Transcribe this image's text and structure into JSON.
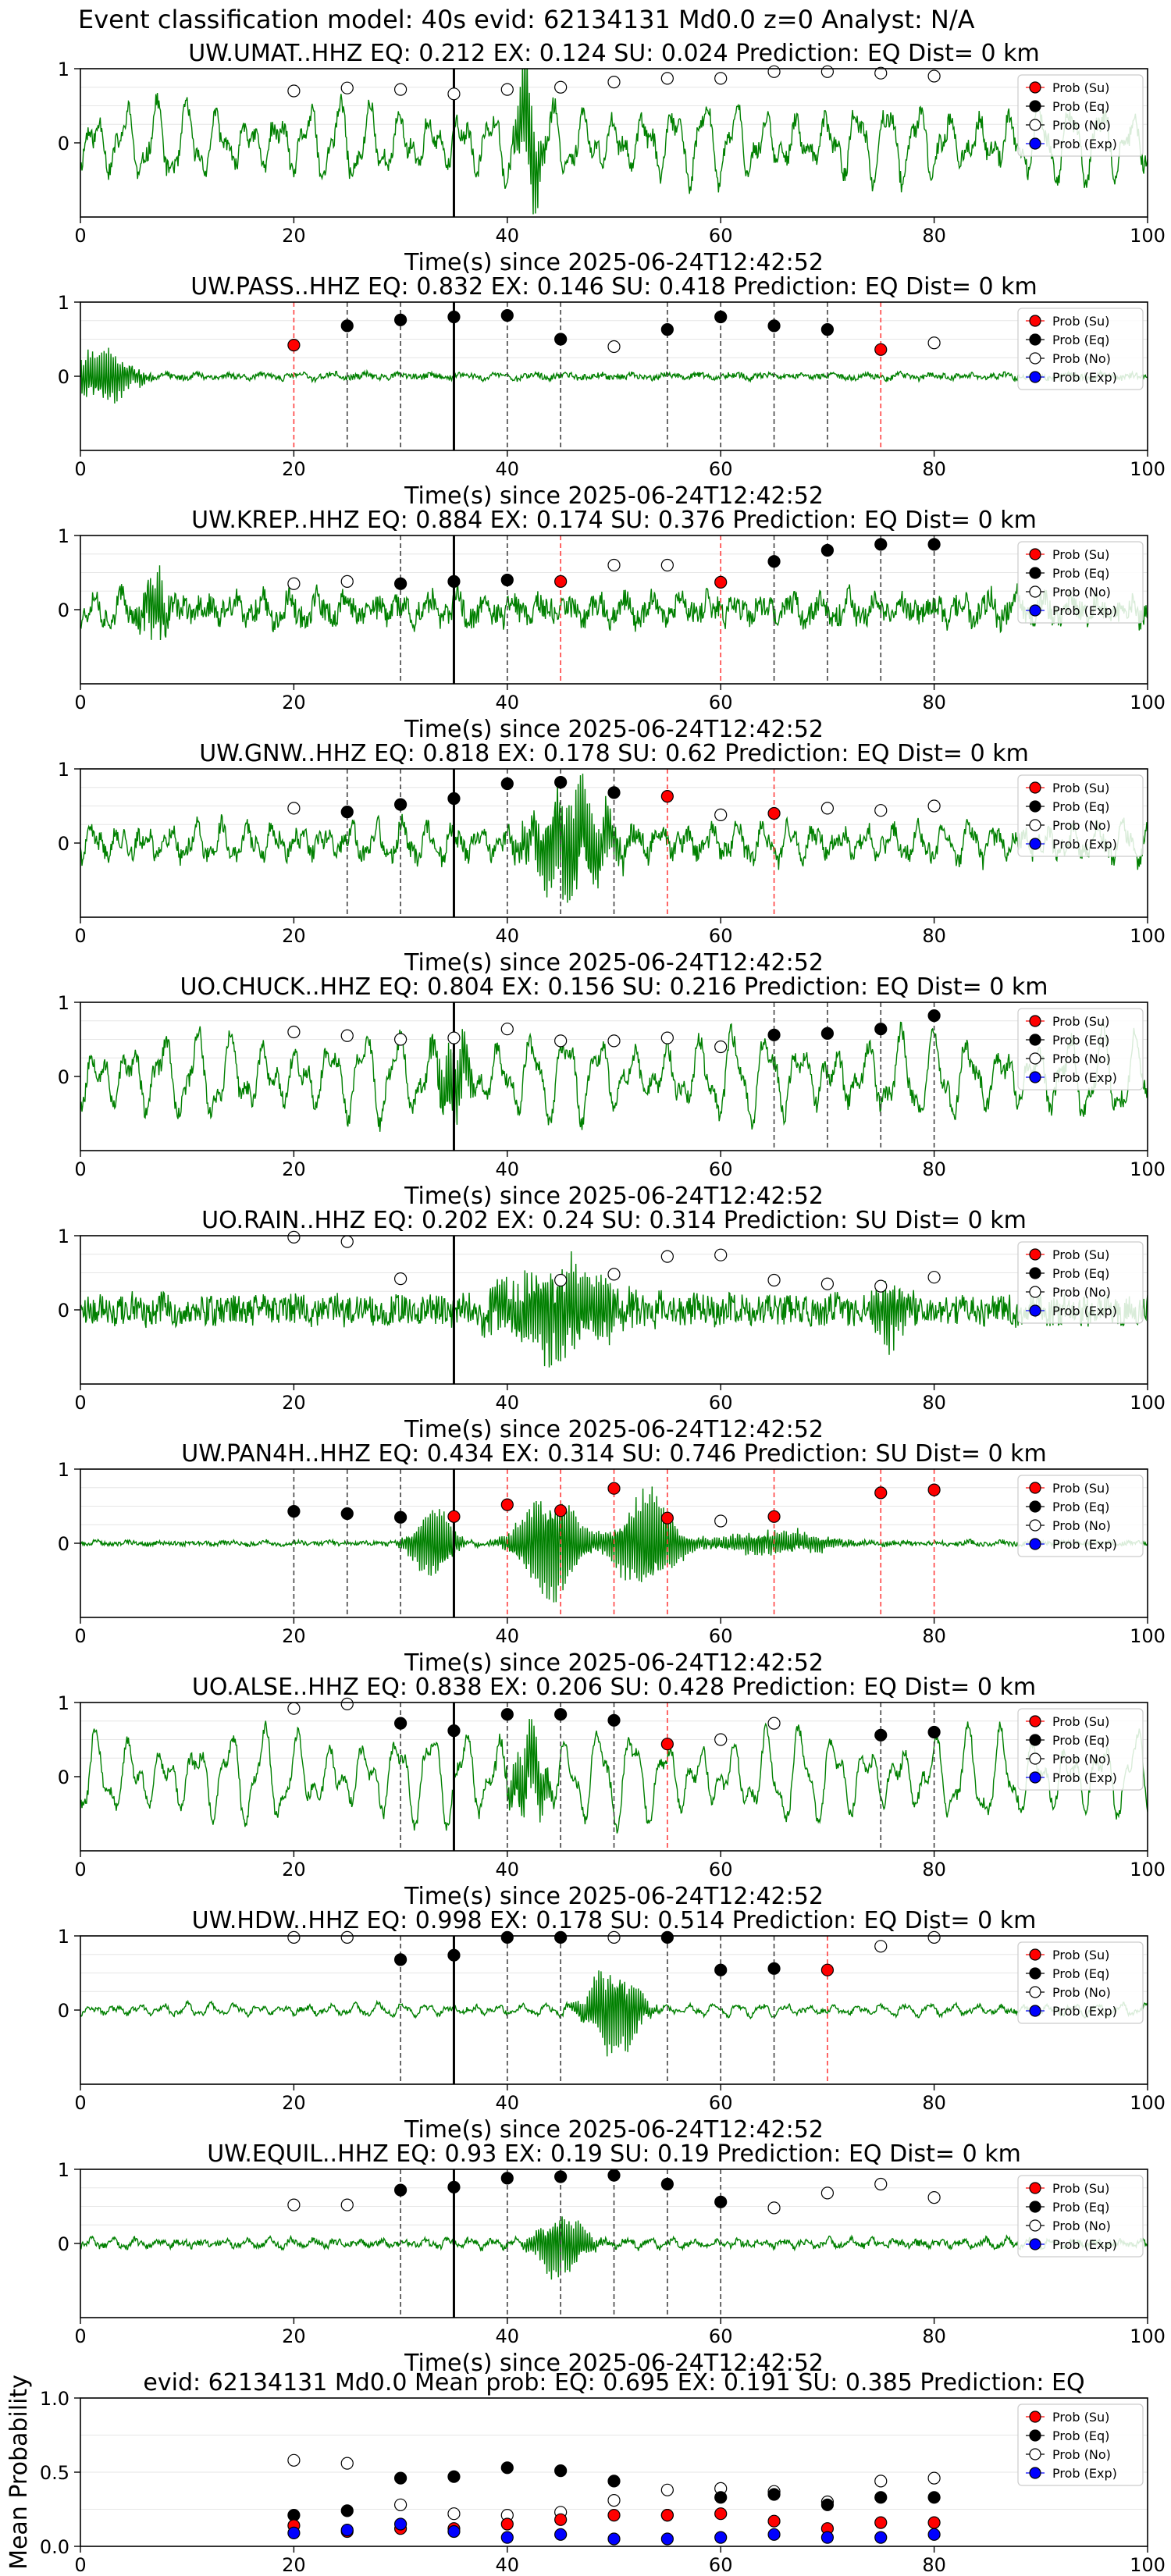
{
  "figure": {
    "suptitle": "Event classification model: 40s evid: 62134131 Md0.0 z=0 Analyst: N/A",
    "legend_labels": [
      "Prob (Su)",
      "Prob (Eq)",
      "Prob (No)",
      "Prob (Exp)"
    ],
    "colors": {
      "su": "#ff0000",
      "eq": "#000000",
      "no": "#ffffff",
      "exp": "#0000ff",
      "trace": "#008000"
    }
  },
  "chart_data": [
    {
      "type": "line",
      "title": "UW.UMAT..HHZ   EQ: 0.212  EX: 0.124  SU: 0.024   Prediction: EQ    Dist= 0 km",
      "xlabel": "Time(s) since 2025-06-24T12:42:52",
      "xlim": [
        0,
        100
      ],
      "ylim": [
        -1,
        1
      ],
      "xticks": [
        "0",
        "20",
        "40",
        "60",
        "80",
        "100"
      ],
      "yticks": [
        "0",
        "1"
      ],
      "seed": 11,
      "amp": 0.45,
      "noise": 0.12,
      "freq": 1.1,
      "bursts": [
        [
          42,
          0.9,
          1.2
        ]
      ],
      "pick_line": 35,
      "markers": [
        [
          20,
          0.7,
          "no"
        ],
        [
          25,
          0.74,
          "no"
        ],
        [
          30,
          0.72,
          "no"
        ],
        [
          35,
          0.66,
          "no"
        ],
        [
          40,
          0.72,
          "no"
        ],
        [
          45,
          0.75,
          "no"
        ],
        [
          50,
          0.82,
          "no"
        ],
        [
          55,
          0.87,
          "no"
        ],
        [
          60,
          0.87,
          "no"
        ],
        [
          65,
          0.96,
          "no"
        ],
        [
          70,
          0.96,
          "no"
        ],
        [
          75,
          0.94,
          "no"
        ],
        [
          80,
          0.9,
          "no"
        ]
      ]
    },
    {
      "type": "line",
      "title": "UW.PASS..HHZ   EQ: 0.832  EX: 0.146  SU: 0.418   Prediction: EQ    Dist= 0 km",
      "xlabel": "Time(s) since 2025-06-24T12:42:52",
      "xlim": [
        0,
        100
      ],
      "ylim": [
        -1,
        1
      ],
      "xticks": [
        "0",
        "20",
        "40",
        "60",
        "80",
        "100"
      ],
      "yticks": [
        "0",
        "1"
      ],
      "seed": 23,
      "amp": 0.03,
      "noise": 0.04,
      "freq": 1.0,
      "bursts": [
        [
          2,
          0.45,
          3
        ]
      ],
      "pick_line": 35,
      "markers": [
        [
          20,
          0.42,
          "su"
        ],
        [
          25,
          0.68,
          "eq"
        ],
        [
          30,
          0.76,
          "eq"
        ],
        [
          35,
          0.8,
          "eq"
        ],
        [
          40,
          0.82,
          "eq"
        ],
        [
          45,
          0.5,
          "eq"
        ],
        [
          50,
          0.4,
          "no"
        ],
        [
          55,
          0.63,
          "eq"
        ],
        [
          60,
          0.8,
          "eq"
        ],
        [
          65,
          0.68,
          "eq"
        ],
        [
          70,
          0.63,
          "eq"
        ],
        [
          75,
          0.36,
          "su"
        ],
        [
          80,
          0.45,
          "no"
        ]
      ]
    },
    {
      "type": "line",
      "title": "UW.KREP..HHZ   EQ: 0.884  EX: 0.174  SU: 0.376   Prediction: EQ    Dist= 0 km",
      "xlabel": "Time(s) since 2025-06-24T12:42:52",
      "xlim": [
        0,
        100
      ],
      "ylim": [
        -1,
        1
      ],
      "xticks": [
        "0",
        "20",
        "40",
        "60",
        "80",
        "100"
      ],
      "yticks": [
        "0",
        "1"
      ],
      "seed": 37,
      "amp": 0.16,
      "noise": 0.16,
      "freq": 1.2,
      "bursts": [
        [
          7,
          0.55,
          1.2
        ]
      ],
      "pick_line": 35,
      "markers": [
        [
          20,
          0.35,
          "no"
        ],
        [
          25,
          0.38,
          "no"
        ],
        [
          30,
          0.35,
          "eq"
        ],
        [
          35,
          0.38,
          "eq"
        ],
        [
          40,
          0.4,
          "eq"
        ],
        [
          45,
          0.38,
          "su"
        ],
        [
          50,
          0.6,
          "no"
        ],
        [
          55,
          0.6,
          "no"
        ],
        [
          60,
          0.37,
          "su"
        ],
        [
          65,
          0.65,
          "eq"
        ],
        [
          70,
          0.8,
          "eq"
        ],
        [
          75,
          0.88,
          "eq"
        ],
        [
          80,
          0.88,
          "eq"
        ]
      ]
    },
    {
      "type": "line",
      "title": "UW.GNW..HHZ   EQ: 0.818  EX: 0.178  SU: 0.62   Prediction: EQ    Dist= 0 km",
      "xlabel": "Time(s) since 2025-06-24T12:42:52",
      "xlim": [
        0,
        100
      ],
      "ylim": [
        -1,
        1
      ],
      "xticks": [
        "0",
        "20",
        "40",
        "60",
        "80",
        "100"
      ],
      "yticks": [
        "0",
        "1"
      ],
      "seed": 41,
      "amp": 0.22,
      "noise": 0.12,
      "freq": 1.3,
      "bursts": [
        [
          46,
          0.8,
          4
        ]
      ],
      "pick_line": 35,
      "markers": [
        [
          20,
          0.47,
          "no"
        ],
        [
          25,
          0.42,
          "eq"
        ],
        [
          30,
          0.52,
          "eq"
        ],
        [
          35,
          0.6,
          "eq"
        ],
        [
          40,
          0.8,
          "eq"
        ],
        [
          45,
          0.82,
          "eq"
        ],
        [
          50,
          0.68,
          "eq"
        ],
        [
          55,
          0.63,
          "su"
        ],
        [
          60,
          0.38,
          "no"
        ],
        [
          65,
          0.4,
          "su"
        ],
        [
          70,
          0.47,
          "no"
        ],
        [
          75,
          0.44,
          "no"
        ],
        [
          80,
          0.5,
          "no"
        ]
      ]
    },
    {
      "type": "line",
      "title": "UO.CHUCK..HHZ   EQ: 0.804  EX: 0.156  SU: 0.216   Prediction: EQ    Dist= 0 km",
      "xlabel": "Time(s) since 2025-06-24T12:42:52",
      "xlim": [
        0,
        100
      ],
      "ylim": [
        -1,
        1
      ],
      "xticks": [
        "0",
        "20",
        "40",
        "60",
        "80",
        "100"
      ],
      "yticks": [
        "0",
        "1"
      ],
      "seed": 53,
      "amp": 0.5,
      "noise": 0.12,
      "freq": 1.0,
      "bursts": [
        [
          35,
          0.7,
          1.5
        ]
      ],
      "pick_line": 35,
      "markers": [
        [
          20,
          0.6,
          "no"
        ],
        [
          25,
          0.55,
          "no"
        ],
        [
          30,
          0.5,
          "no"
        ],
        [
          35,
          0.52,
          "no"
        ],
        [
          40,
          0.64,
          "no"
        ],
        [
          45,
          0.48,
          "no"
        ],
        [
          50,
          0.48,
          "no"
        ],
        [
          55,
          0.52,
          "no"
        ],
        [
          60,
          0.4,
          "no"
        ],
        [
          65,
          0.56,
          "eq"
        ],
        [
          70,
          0.58,
          "eq"
        ],
        [
          75,
          0.64,
          "eq"
        ],
        [
          80,
          0.82,
          "eq"
        ]
      ]
    },
    {
      "type": "line",
      "title": "UO.RAIN..HHZ   EQ: 0.202  EX: 0.24  SU: 0.314   Prediction: SU    Dist= 0 km",
      "xlabel": "Time(s) since 2025-06-24T12:42:52",
      "xlim": [
        0,
        100
      ],
      "ylim": [
        -1,
        1
      ],
      "xticks": [
        "0",
        "20",
        "40",
        "60",
        "80",
        "100"
      ],
      "yticks": [
        "0",
        "1"
      ],
      "seed": 67,
      "amp": 0.05,
      "noise": 0.2,
      "freq": 1.0,
      "bursts": [
        [
          45,
          0.7,
          6
        ],
        [
          76,
          0.4,
          2
        ]
      ],
      "pick_line": 35,
      "markers": [
        [
          20,
          0.98,
          "no"
        ],
        [
          25,
          0.92,
          "no"
        ],
        [
          30,
          0.42,
          "no"
        ],
        [
          45,
          0.4,
          "no"
        ],
        [
          50,
          0.48,
          "no"
        ],
        [
          55,
          0.72,
          "no"
        ],
        [
          60,
          0.74,
          "no"
        ],
        [
          65,
          0.4,
          "no"
        ],
        [
          70,
          0.35,
          "no"
        ],
        [
          75,
          0.32,
          "no"
        ],
        [
          80,
          0.44,
          "no"
        ]
      ]
    },
    {
      "type": "line",
      "title": "UW.PAN4H..HHZ   EQ: 0.434  EX: 0.314  SU: 0.746   Prediction: SU    Dist= 0 km",
      "xlabel": "Time(s) since 2025-06-24T12:42:52",
      "xlim": [
        0,
        100
      ],
      "ylim": [
        -1,
        1
      ],
      "xticks": [
        "0",
        "20",
        "40",
        "60",
        "80",
        "100"
      ],
      "yticks": [
        "0",
        "1"
      ],
      "seed": 71,
      "amp": 0.02,
      "noise": 0.03,
      "freq": 1.0,
      "bursts": [
        [
          33,
          0.6,
          2
        ],
        [
          44,
          0.85,
          3
        ],
        [
          53,
          0.8,
          3
        ],
        [
          65,
          0.2,
          6
        ]
      ],
      "pick_line": 35,
      "markers": [
        [
          20,
          0.43,
          "eq"
        ],
        [
          25,
          0.4,
          "eq"
        ],
        [
          30,
          0.35,
          "eq"
        ],
        [
          35,
          0.36,
          "su"
        ],
        [
          40,
          0.52,
          "su"
        ],
        [
          45,
          0.44,
          "su"
        ],
        [
          50,
          0.74,
          "su"
        ],
        [
          55,
          0.34,
          "su"
        ],
        [
          60,
          0.3,
          "no"
        ],
        [
          65,
          0.36,
          "su"
        ],
        [
          75,
          0.68,
          "su"
        ],
        [
          80,
          0.72,
          "su"
        ]
      ]
    },
    {
      "type": "line",
      "title": "UO.ALSE..HHZ   EQ: 0.838  EX: 0.206  SU: 0.428   Prediction: EQ    Dist= 0 km",
      "xlabel": "Time(s) since 2025-06-24T12:42:52",
      "xlim": [
        0,
        100
      ],
      "ylim": [
        -1,
        1
      ],
      "xticks": [
        "0",
        "20",
        "40",
        "60",
        "80",
        "100"
      ],
      "yticks": [
        "0",
        "1"
      ],
      "seed": 83,
      "amp": 0.55,
      "noise": 0.08,
      "freq": 1.0,
      "bursts": [
        [
          42,
          0.6,
          2
        ]
      ],
      "pick_line": 35,
      "markers": [
        [
          20,
          0.92,
          "no"
        ],
        [
          25,
          0.98,
          "no"
        ],
        [
          30,
          0.72,
          "eq"
        ],
        [
          35,
          0.62,
          "eq"
        ],
        [
          40,
          0.84,
          "eq"
        ],
        [
          45,
          0.84,
          "eq"
        ],
        [
          50,
          0.76,
          "eq"
        ],
        [
          55,
          0.44,
          "su"
        ],
        [
          60,
          0.5,
          "no"
        ],
        [
          65,
          0.72,
          "no"
        ],
        [
          75,
          0.56,
          "eq"
        ],
        [
          80,
          0.6,
          "eq"
        ]
      ]
    },
    {
      "type": "line",
      "title": "UW.HDW..HHZ   EQ: 0.998  EX: 0.178  SU: 0.514   Prediction: EQ    Dist= 0 km",
      "xlabel": "Time(s) since 2025-06-24T12:42:52",
      "xlim": [
        0,
        100
      ],
      "ylim": [
        -1,
        1
      ],
      "xticks": [
        "0",
        "20",
        "40",
        "60",
        "80",
        "100"
      ],
      "yticks": [
        "0",
        "1"
      ],
      "seed": 97,
      "amp": 0.07,
      "noise": 0.03,
      "freq": 1.4,
      "bursts": [
        [
          50,
          0.75,
          2.5
        ]
      ],
      "pick_line": 35,
      "markers": [
        [
          20,
          0.98,
          "no"
        ],
        [
          25,
          0.98,
          "no"
        ],
        [
          30,
          0.68,
          "eq"
        ],
        [
          35,
          0.74,
          "eq"
        ],
        [
          40,
          0.98,
          "eq"
        ],
        [
          45,
          0.98,
          "eq"
        ],
        [
          50,
          0.98,
          "no"
        ],
        [
          55,
          0.98,
          "eq"
        ],
        [
          60,
          0.54,
          "eq"
        ],
        [
          65,
          0.56,
          "eq"
        ],
        [
          70,
          0.54,
          "su"
        ],
        [
          75,
          0.86,
          "no"
        ],
        [
          80,
          0.98,
          "no"
        ]
      ]
    },
    {
      "type": "line",
      "title": "UW.EQUIL..HHZ   EQ: 0.93  EX: 0.19  SU: 0.19   Prediction: EQ    Dist= 0 km",
      "xlabel": "Time(s) since 2025-06-24T12:42:52",
      "xlim": [
        0,
        100
      ],
      "ylim": [
        -1,
        1
      ],
      "xticks": [
        "0",
        "20",
        "40",
        "60",
        "80",
        "100"
      ],
      "yticks": [
        "0",
        "1"
      ],
      "seed": 103,
      "amp": 0.05,
      "noise": 0.04,
      "freq": 1.5,
      "bursts": [
        [
          45,
          0.5,
          2.5
        ]
      ],
      "pick_line": 35,
      "markers": [
        [
          20,
          0.52,
          "no"
        ],
        [
          25,
          0.52,
          "no"
        ],
        [
          30,
          0.72,
          "eq"
        ],
        [
          35,
          0.76,
          "eq"
        ],
        [
          40,
          0.88,
          "eq"
        ],
        [
          45,
          0.9,
          "eq"
        ],
        [
          50,
          0.92,
          "eq"
        ],
        [
          55,
          0.8,
          "eq"
        ],
        [
          60,
          0.56,
          "eq"
        ],
        [
          65,
          0.48,
          "no"
        ],
        [
          70,
          0.68,
          "no"
        ],
        [
          75,
          0.8,
          "no"
        ],
        [
          80,
          0.62,
          "no"
        ]
      ]
    },
    {
      "type": "scatter",
      "title": "evid: 62134131  Md0.0   Mean prob:   EQ: 0.695  EX: 0.191  SU: 0.385   Prediction: EQ",
      "ylabel": "Mean Probability",
      "xlim": [
        0,
        100
      ],
      "ylim": [
        0,
        1
      ],
      "xticks": [
        "0",
        "20",
        "40",
        "60",
        "80",
        "100"
      ],
      "yticks": [
        "0.0",
        "0.5",
        "1.0"
      ],
      "x": [
        20,
        25,
        30,
        35,
        40,
        45,
        50,
        55,
        60,
        65,
        70,
        75,
        80
      ],
      "series": [
        {
          "name": "Prob (No)",
          "key": "no",
          "values": [
            0.58,
            0.56,
            0.28,
            0.22,
            0.21,
            0.23,
            0.31,
            0.38,
            0.39,
            0.37,
            0.3,
            0.44,
            0.46
          ]
        },
        {
          "name": "Prob (Eq)",
          "key": "eq",
          "values": [
            0.21,
            0.24,
            0.46,
            0.47,
            0.53,
            0.51,
            0.44,
            0.21,
            0.33,
            0.35,
            0.28,
            0.33,
            0.33
          ]
        },
        {
          "name": "Prob (Su)",
          "key": "su",
          "values": [
            0.14,
            0.1,
            0.12,
            0.12,
            0.15,
            0.18,
            0.21,
            0.21,
            0.22,
            0.17,
            0.12,
            0.16,
            0.16
          ]
        },
        {
          "name": "Prob (Exp)",
          "key": "exp",
          "values": [
            0.09,
            0.11,
            0.15,
            0.1,
            0.06,
            0.08,
            0.05,
            0.05,
            0.06,
            0.08,
            0.06,
            0.06,
            0.08
          ]
        }
      ]
    }
  ]
}
